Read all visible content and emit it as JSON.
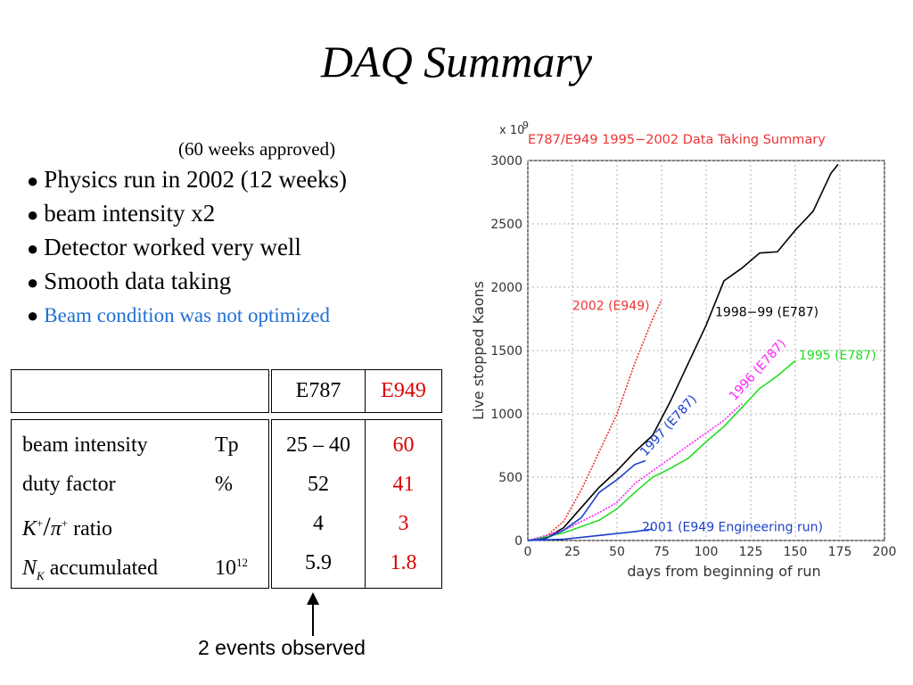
{
  "slide": {
    "title": "DAQ Summary",
    "approved_note": "(60 weeks approved)",
    "bullets": [
      "Physics run in 2002 (12 weeks)",
      "beam intensity x2",
      "Detector worked very well",
      "Smooth data taking",
      "Beam condition was not optimized"
    ],
    "bullet_colors": {
      "last": "#1f6fd6"
    },
    "annotation": "2 events observed"
  },
  "table": {
    "headers": [
      "E787",
      "E949"
    ],
    "rows": [
      {
        "label": "beam intensity",
        "unit": "Tp",
        "e787": "25 – 40",
        "e949": "60"
      },
      {
        "label": "duty factor",
        "unit": "%",
        "e787": "52",
        "e949": "41"
      },
      {
        "label": "K+/π+ ratio",
        "unit": "",
        "e787": "4",
        "e949": "3"
      },
      {
        "label": "NK accumulated",
        "unit": "10^12",
        "e787": "5.9",
        "e949": "1.8"
      }
    ],
    "highlight_color": "#dd0000"
  },
  "chart_data": {
    "type": "line",
    "title": "E787/E949 1995−2002 Data Taking Summary",
    "scale_label": "x 10",
    "scale_exponent": "9",
    "xlabel": "days from beginning of run",
    "ylabel": "Live stopped Kaons",
    "xlim": [
      0,
      200
    ],
    "ylim": [
      0,
      3000
    ],
    "xticks": [
      0,
      25,
      50,
      75,
      100,
      125,
      150,
      175,
      200
    ],
    "yticks": [
      0,
      500,
      1000,
      1500,
      2000,
      2500,
      3000
    ],
    "grid": true,
    "series": [
      {
        "name": "1998−99 (E787)",
        "color": "#000000",
        "x": [
          0,
          10,
          20,
          30,
          40,
          50,
          60,
          70,
          80,
          90,
          100,
          110,
          120,
          130,
          140,
          150,
          160,
          170,
          174
        ],
        "y": [
          0,
          20,
          100,
          260,
          420,
          550,
          700,
          830,
          1100,
          1400,
          1700,
          2050,
          2150,
          2270,
          2280,
          2450,
          2600,
          2900,
          2970
        ]
      },
      {
        "name": "2002 (E949)",
        "color": "#ee3333",
        "x": [
          0,
          10,
          20,
          30,
          40,
          50,
          60,
          70,
          75
        ],
        "y": [
          0,
          30,
          150,
          400,
          700,
          1000,
          1400,
          1750,
          1900
        ]
      },
      {
        "name": "1995 (E787)",
        "color": "#22dd22",
        "x": [
          0,
          20,
          40,
          50,
          60,
          70,
          80,
          90,
          100,
          110,
          120,
          130,
          140,
          150
        ],
        "y": [
          0,
          60,
          160,
          250,
          380,
          500,
          570,
          650,
          780,
          900,
          1050,
          1200,
          1300,
          1420
        ]
      },
      {
        "name": "1996 (E787)",
        "color": "#ff22ff",
        "x": [
          0,
          20,
          40,
          50,
          60,
          70,
          80,
          90,
          100,
          110,
          120
        ],
        "y": [
          0,
          80,
          220,
          300,
          450,
          550,
          650,
          750,
          850,
          950,
          1080
        ]
      },
      {
        "name": "1997 (E787)",
        "color": "#1a3fcc",
        "x": [
          0,
          10,
          20,
          30,
          40,
          50,
          60,
          66
        ],
        "y": [
          0,
          15,
          80,
          180,
          380,
          480,
          600,
          630
        ]
      },
      {
        "name": "2001 (E949 Engineering run)",
        "color": "#1a3fcc",
        "x": [
          0,
          20,
          40,
          60,
          70
        ],
        "y": [
          0,
          10,
          40,
          70,
          90
        ]
      }
    ]
  }
}
